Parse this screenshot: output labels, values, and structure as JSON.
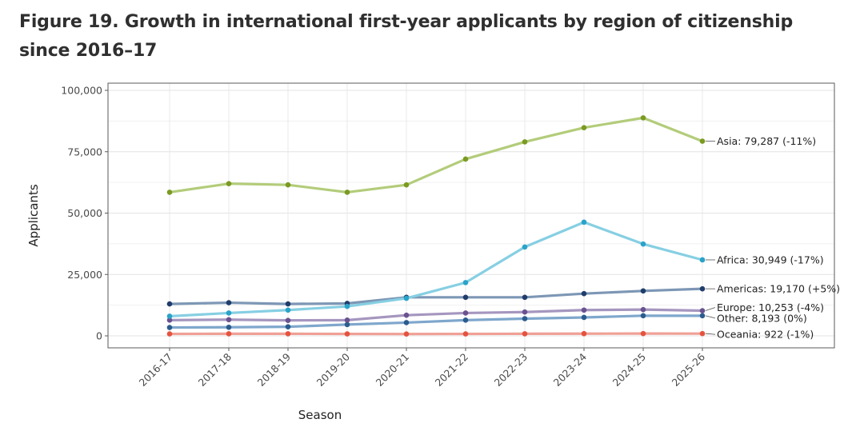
{
  "figure": {
    "title_line1": "Figure 19. Growth in international first-year applicants by region of citizenship",
    "title_line2": "since 2016–17"
  },
  "chart_data": {
    "type": "line",
    "title": "Figure 19. Growth in international first-year applicants by region of citizenship since 2016–17",
    "xlabel": "Season",
    "ylabel": "Applicants",
    "ylim": [
      0,
      100000
    ],
    "y_ticks": [
      0,
      25000,
      50000,
      75000,
      100000
    ],
    "y_tick_labels": [
      "0",
      "25,000",
      "50,000",
      "75,000",
      "100,000"
    ],
    "grid": true,
    "legend": "direct labels at right end of each line",
    "categories": [
      "2016-17",
      "2017-18",
      "2018-19",
      "2019-20",
      "2020-21",
      "2021-22",
      "2022-23",
      "2023-24",
      "2024-25",
      "2025-26"
    ],
    "series": [
      {
        "name": "Asia",
        "end_label": "Asia: 79,287 (-11%)",
        "line_color": "#b3cc7a",
        "point_color": "#7a9a22",
        "values": [
          58500,
          62000,
          61500,
          58500,
          61500,
          72000,
          79000,
          84800,
          88800,
          79287
        ]
      },
      {
        "name": "Africa",
        "end_label": "Africa: 30,949 (-17%)",
        "line_color": "#86cfe3",
        "point_color": "#2aa3c9",
        "values": [
          8000,
          9300,
          10500,
          12000,
          15300,
          21700,
          36200,
          46300,
          37400,
          30949
        ]
      },
      {
        "name": "Americas",
        "end_label": "Americas: 19,170 (+5%)",
        "line_color": "#7d97b5",
        "point_color": "#1f3d6b",
        "values": [
          13000,
          13500,
          13000,
          13200,
          15700,
          15700,
          15700,
          17200,
          18300,
          19170
        ]
      },
      {
        "name": "Europe",
        "end_label": "Europe: 10,253 (-4%)",
        "line_color": "#a596bf",
        "point_color": "#6a5290",
        "values": [
          6400,
          6600,
          6300,
          6400,
          8400,
          9300,
          9700,
          10500,
          10700,
          10253
        ]
      },
      {
        "name": "Other",
        "end_label": "Other: 8,193 (0%)",
        "line_color": "#7fa7cc",
        "point_color": "#2b5c8f",
        "values": [
          3400,
          3500,
          3700,
          4600,
          5400,
          6400,
          7000,
          7500,
          8200,
          8193
        ]
      },
      {
        "name": "Oceania",
        "end_label": "Oceania: 922 (-1%)",
        "line_color": "#f0a096",
        "point_color": "#e5533e",
        "values": [
          800,
          850,
          850,
          800,
          750,
          800,
          850,
          900,
          930,
          922
        ]
      }
    ]
  }
}
